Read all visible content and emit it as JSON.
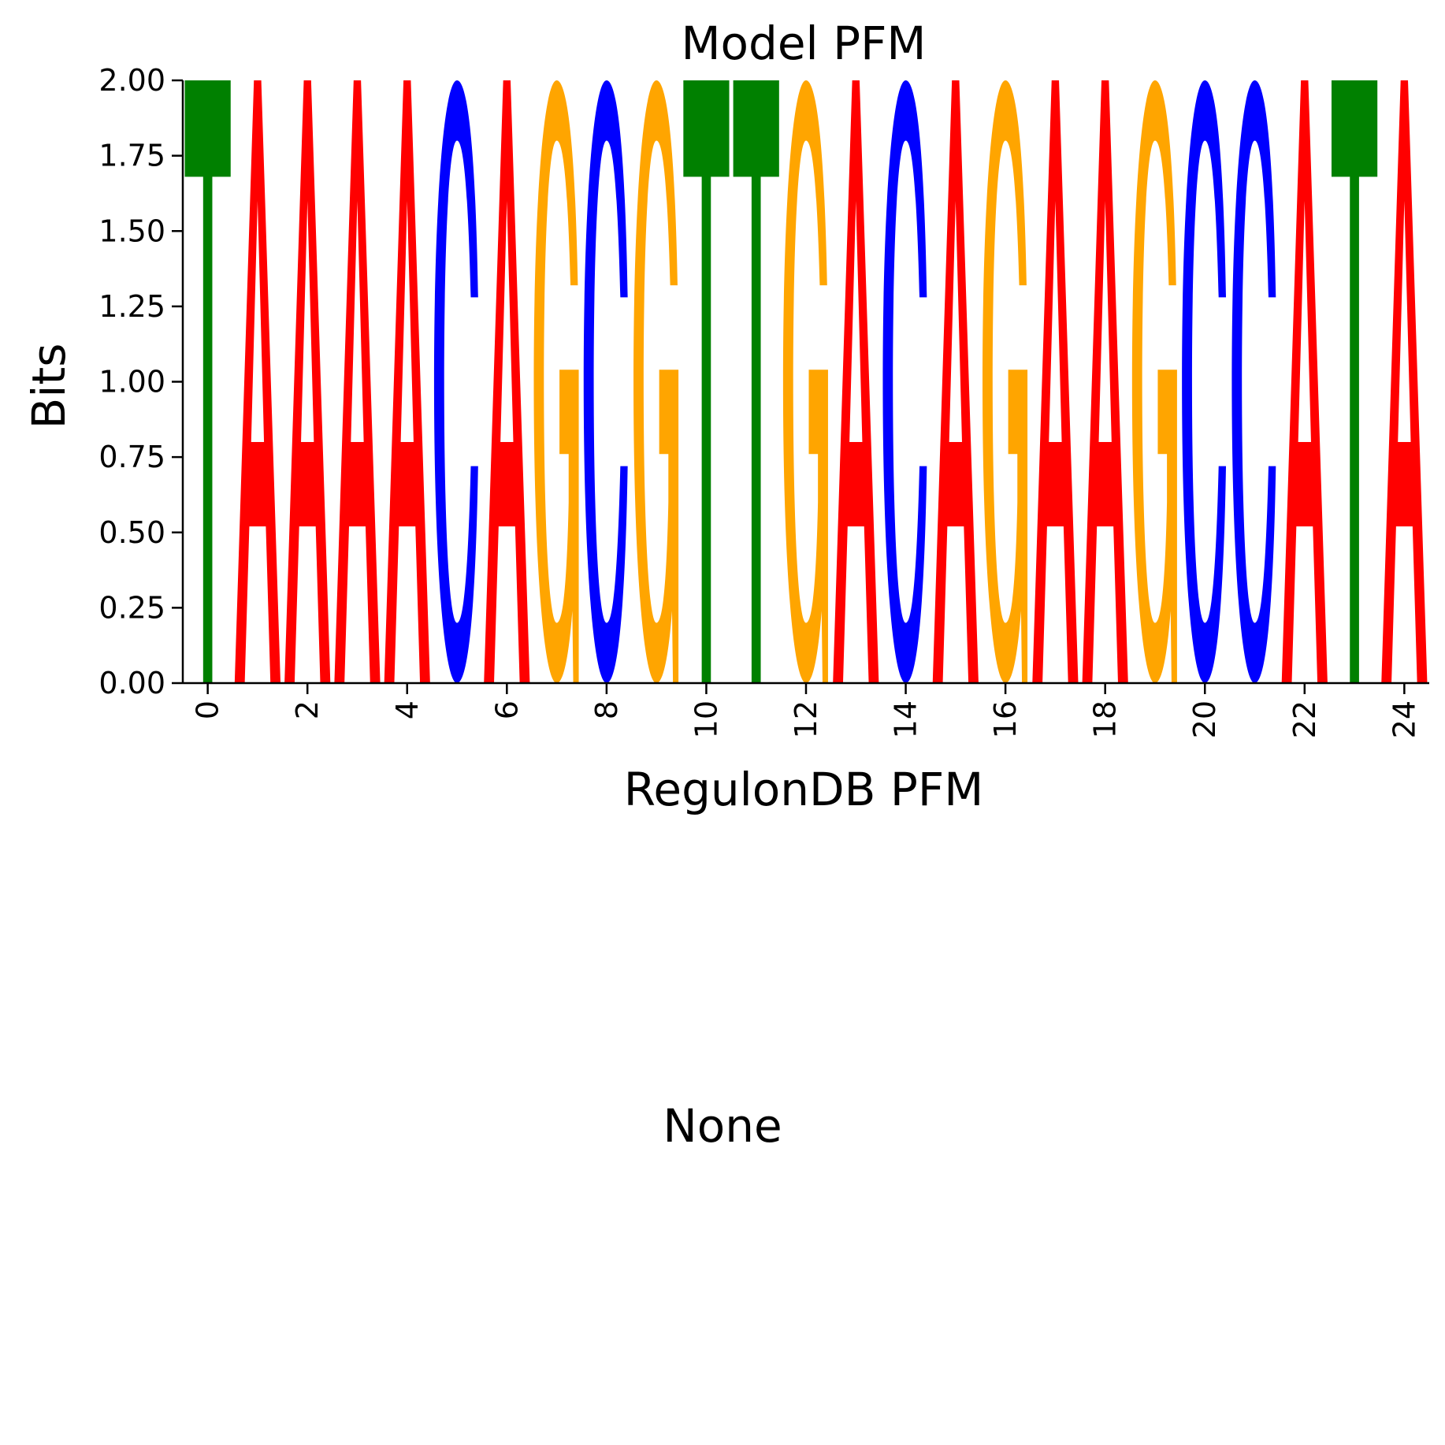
{
  "chart_data": {
    "type": "sequence-logo",
    "title": "Model PFM",
    "xlabel": "RegulonDB PFM",
    "ylabel": "Bits",
    "ylim": [
      0,
      2
    ],
    "xlim": [
      -0.5,
      24.5
    ],
    "yticks": [
      "0.00",
      "0.25",
      "0.50",
      "0.75",
      "1.00",
      "1.25",
      "1.50",
      "1.75",
      "2.00"
    ],
    "xticks": [
      "0",
      "2",
      "4",
      "6",
      "8",
      "10",
      "12",
      "14",
      "16",
      "18",
      "20",
      "22",
      "24"
    ],
    "positions": [
      0,
      1,
      2,
      3,
      4,
      5,
      6,
      7,
      8,
      9,
      10,
      11,
      12,
      13,
      14,
      15,
      16,
      17,
      18,
      19,
      20,
      21,
      22,
      23,
      24
    ],
    "letters": [
      "T",
      "A",
      "A",
      "A",
      "A",
      "C",
      "A",
      "G",
      "C",
      "G",
      "T",
      "T",
      "G",
      "A",
      "C",
      "A",
      "G",
      "A",
      "A",
      "G",
      "C",
      "C",
      "A",
      "T",
      "A"
    ],
    "bits": [
      2,
      2,
      2,
      2,
      2,
      2,
      2,
      2,
      2,
      2,
      2,
      2,
      2,
      2,
      2,
      2,
      2,
      2,
      2,
      2,
      2,
      2,
      2,
      2,
      2
    ],
    "letter_colors": {
      "A": "#ff0000",
      "C": "#0000ff",
      "G": "#ffa500",
      "T": "#008000"
    }
  },
  "lower_panel": {
    "text": "None"
  }
}
